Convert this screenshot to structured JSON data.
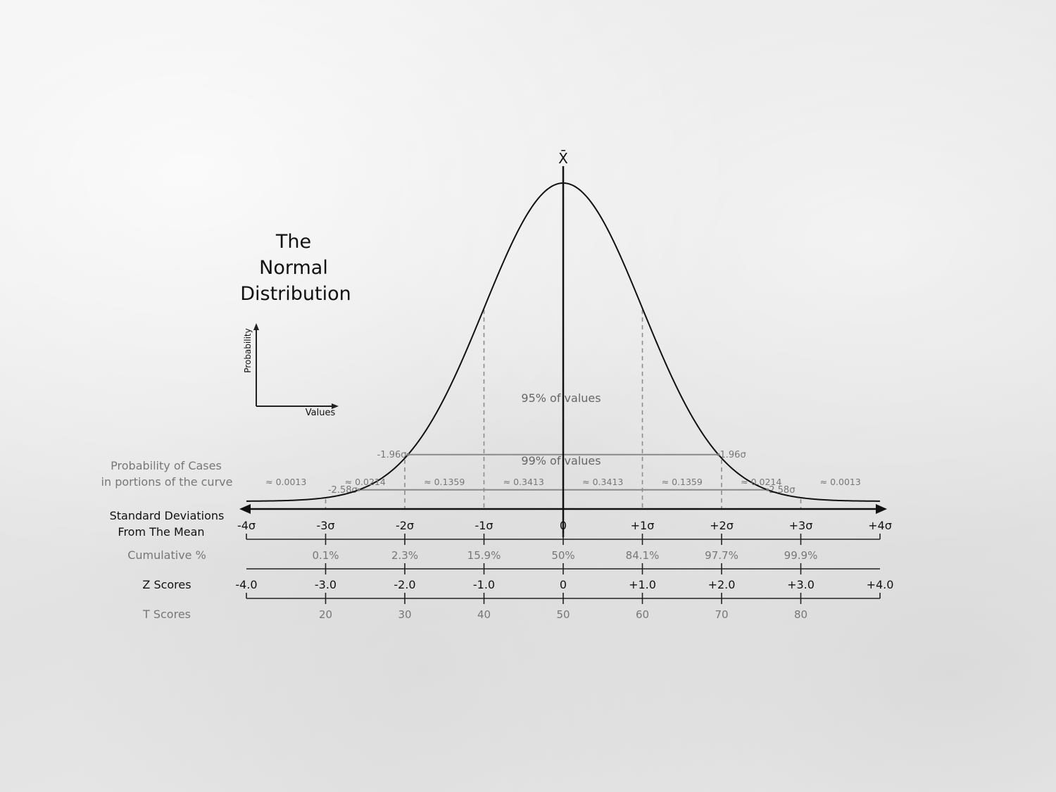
{
  "title": {
    "line1": "The",
    "line2": "Normal",
    "line3": "Distribution"
  },
  "mean_symbol": "X̄",
  "mini_axes": {
    "y_label": "Probability",
    "x_label": "Values"
  },
  "intervals": {
    "ci95": {
      "left": "-1.96σ",
      "right": "1.96σ",
      "label": "95% of values",
      "z": 1.96
    },
    "ci99": {
      "left": "-2.58σ",
      "right": "2.58σ",
      "label": "99% of values",
      "z": 2.58
    }
  },
  "prob_row": {
    "label_line1": "Probability of Cases",
    "label_line2": "in portions of the curve",
    "values": [
      "≈ 0.0013",
      "≈ 0.0214",
      "≈ 0.1359",
      "≈ 0.3413",
      "≈ 0.3413",
      "≈ 0.1359",
      "≈ 0.0214",
      "≈ 0.0013"
    ]
  },
  "sd_row": {
    "label_line1": "Standard Deviations",
    "label_line2": "From The Mean",
    "ticks": [
      "-4σ",
      "-3σ",
      "-2σ",
      "-1σ",
      "0",
      "+1σ",
      "+2σ",
      "+3σ",
      "+4σ"
    ]
  },
  "cumulative_row": {
    "label": "Cumulative %",
    "values": [
      "",
      "0.1%",
      "2.3%",
      "15.9%",
      "50%",
      "84.1%",
      "97.7%",
      "99.9%",
      ""
    ]
  },
  "z_row": {
    "label": "Z Scores",
    "values": [
      "-4.0",
      "-3.0",
      "-2.0",
      "-1.0",
      "0",
      "+1.0",
      "+2.0",
      "+3.0",
      "+4.0"
    ]
  },
  "t_row": {
    "label": "T Scores",
    "values": [
      "",
      "20",
      "30",
      "40",
      "50",
      "60",
      "70",
      "80",
      ""
    ]
  },
  "chart_data": {
    "type": "line",
    "x_range": [
      -4,
      4
    ],
    "distribution": "standard normal",
    "mean": 0,
    "sd": 1,
    "sd_ticks": [
      -4,
      -3,
      -2,
      -1,
      0,
      1,
      2,
      3,
      4
    ]
  }
}
